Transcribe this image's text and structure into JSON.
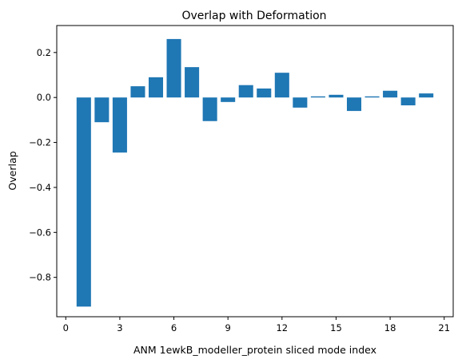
{
  "chart_data": {
    "type": "bar",
    "title": "Overlap with Deformation",
    "xlabel": "ANM 1ewkB_modeller_protein sliced mode index",
    "ylabel": "Overlap",
    "x": [
      1,
      2,
      3,
      4,
      5,
      6,
      7,
      8,
      9,
      10,
      11,
      12,
      13,
      14,
      15,
      16,
      17,
      18,
      19,
      20
    ],
    "values": [
      -0.93,
      -0.11,
      -0.245,
      0.05,
      0.09,
      0.26,
      0.135,
      -0.105,
      -0.02,
      0.055,
      0.04,
      0.11,
      -0.045,
      0.005,
      0.012,
      -0.06,
      0.005,
      0.03,
      -0.035,
      0.018
    ],
    "xlim": [
      -0.5,
      21.5
    ],
    "ylim": [
      -0.975,
      0.32
    ],
    "xticks": [
      0,
      3,
      6,
      9,
      12,
      15,
      18,
      21
    ],
    "xtick_labels": [
      "0",
      "3",
      "6",
      "9",
      "12",
      "15",
      "18",
      "21"
    ],
    "yticks": [
      -0.8,
      -0.6,
      -0.4,
      -0.2,
      0.0,
      0.2
    ],
    "ytick_labels": [
      "−0.8",
      "−0.6",
      "−0.4",
      "−0.2",
      "0.0",
      "0.2"
    ],
    "bar_color": "#1f77b4",
    "grid": false,
    "legend": "none"
  }
}
